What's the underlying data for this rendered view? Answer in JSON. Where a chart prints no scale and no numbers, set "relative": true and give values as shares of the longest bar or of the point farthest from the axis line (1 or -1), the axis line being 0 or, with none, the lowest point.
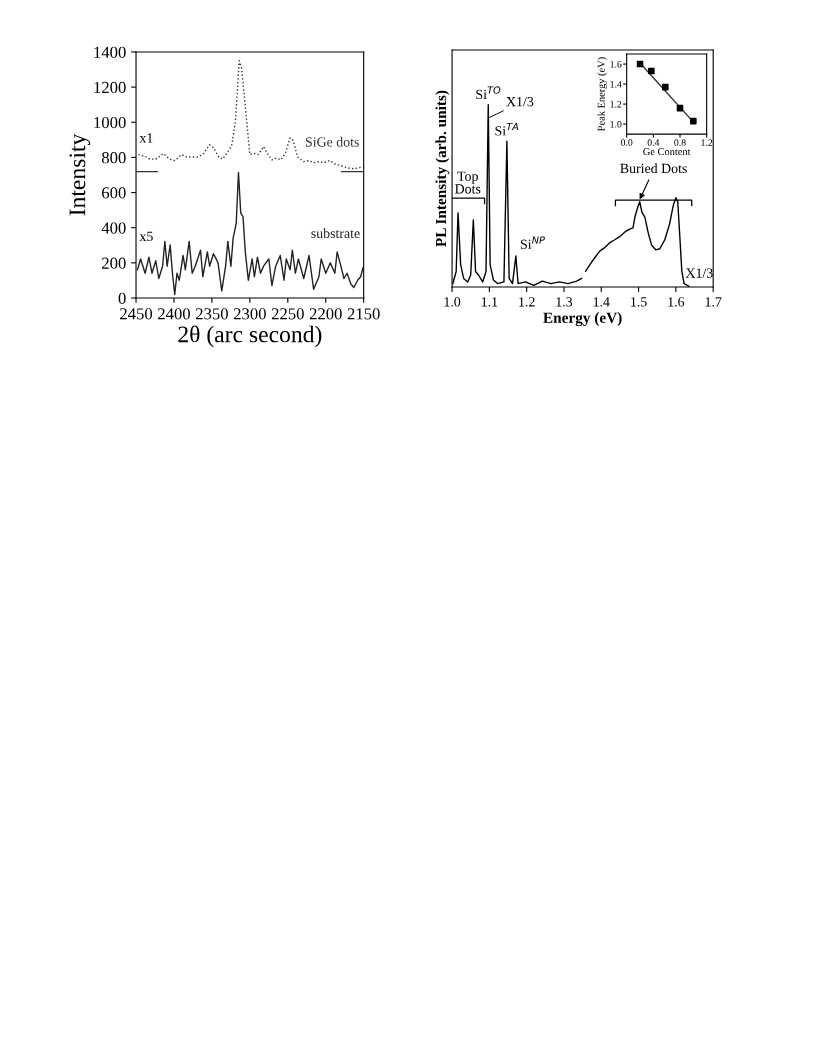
{
  "chart_data": [
    {
      "type": "line",
      "xlabel": "2θ (arc second)",
      "ylabel": "Intensity",
      "xlim": [
        2450,
        2150
      ],
      "xticks": [
        2450,
        2400,
        2350,
        2300,
        2250,
        2200,
        2150
      ],
      "ylim": [
        0,
        1400
      ],
      "yticks": [
        0,
        200,
        400,
        600,
        800,
        1000,
        1200,
        1400
      ],
      "series": [
        {
          "name": "SiGe dots",
          "color": "#333333",
          "line_style": "dotted",
          "x": [
            2447,
            2438,
            2432,
            2424,
            2414,
            2406,
            2399,
            2390,
            2383,
            2374,
            2368,
            2361,
            2353,
            2348,
            2341,
            2336,
            2330,
            2324,
            2319,
            2314,
            2311,
            2306,
            2300,
            2294,
            2289,
            2282,
            2278,
            2271,
            2265,
            2259,
            2253,
            2247,
            2243,
            2237,
            2229,
            2222,
            2216,
            2208,
            2202,
            2195,
            2187,
            2181,
            2172,
            2163,
            2152
          ],
          "values": [
            816,
            806,
            790,
            790,
            822,
            790,
            782,
            816,
            802,
            802,
            802,
            822,
            872,
            856,
            802,
            790,
            826,
            866,
            1007,
            1350,
            1310,
            1088,
            816,
            822,
            816,
            862,
            830,
            786,
            796,
            786,
            826,
            911,
            897,
            802,
            776,
            782,
            770,
            776,
            770,
            782,
            760,
            755,
            741,
            735,
            745
          ]
        },
        {
          "name": "substrate",
          "color": "#222222",
          "line_style": "solid",
          "x": [
            2448,
            2444,
            2438,
            2433,
            2429,
            2424,
            2420,
            2415,
            2412,
            2409,
            2405,
            2402,
            2399,
            2396,
            2393,
            2388,
            2385,
            2380,
            2376,
            2372,
            2365,
            2362,
            2356,
            2353,
            2348,
            2342,
            2337,
            2332,
            2329,
            2325,
            2322,
            2318,
            2315,
            2312,
            2309,
            2306,
            2302,
            2297,
            2294,
            2290,
            2286,
            2282,
            2275,
            2271,
            2266,
            2260,
            2255,
            2252,
            2247,
            2244,
            2240,
            2236,
            2229,
            2222,
            2216,
            2209,
            2206,
            2200,
            2194,
            2188,
            2185,
            2180,
            2176,
            2172,
            2167,
            2163,
            2158,
            2154,
            2151
          ],
          "values": [
            161,
            222,
            141,
            232,
            141,
            212,
            111,
            181,
            322,
            181,
            302,
            141,
            20,
            141,
            101,
            242,
            161,
            322,
            141,
            181,
            272,
            121,
            262,
            181,
            252,
            201,
            40,
            181,
            322,
            181,
            342,
            423,
            715,
            483,
            463,
            262,
            101,
            222,
            121,
            232,
            141,
            181,
            222,
            71,
            181,
            242,
            101,
            222,
            161,
            272,
            141,
            222,
            111,
            242,
            50,
            121,
            222,
            141,
            201,
            141,
            262,
            181,
            111,
            141,
            81,
            60,
            101,
            121,
            171
          ]
        },
        {
          "color": "#333333",
          "line_style": "solid",
          "x": [
            2450,
            2422
          ],
          "values": [
            719,
            719
          ]
        },
        {
          "color": "#333333",
          "line_style": "solid",
          "x": [
            2179,
            2150
          ],
          "values": [
            719,
            719
          ]
        }
      ],
      "annotations": [
        "x1",
        "x5"
      ]
    },
    {
      "type": "line",
      "relative": true,
      "xlabel": "Energy (eV)",
      "ylabel": "PL Intensity (arb. units)",
      "xlim": [
        1.0,
        1.7
      ],
      "xticks": [
        {
          "value": 1.0,
          "label": "1.0"
        },
        1.1,
        1.2,
        1.3,
        1.4,
        1.5,
        1.6,
        1.7
      ],
      "series": [
        {
          "color": "#000000",
          "x": [
            1.002,
            1.011,
            1.016,
            1.023,
            1.031,
            1.042,
            1.05,
            1.057,
            1.063,
            1.071,
            1.082,
            1.091,
            1.097,
            1.102,
            1.111,
            1.122,
            1.139,
            1.147,
            1.153,
            1.162,
            1.171,
            1.177,
            1.197,
            1.219,
            1.242,
            1.265,
            1.288,
            1.311,
            1.334,
            1.347
          ],
          "values": [
            0.019,
            0.085,
            0.406,
            0.123,
            0.047,
            0.028,
            0.066,
            0.368,
            0.085,
            0.066,
            0.028,
            0.085,
            1.0,
            0.123,
            0.038,
            0.019,
            0.028,
            0.8,
            0.047,
            0.019,
            0.17,
            0.019,
            0.028,
            0.009,
            0.032,
            0.019,
            0.028,
            0.019,
            0.032,
            0.047
          ]
        },
        {
          "color": "#000000",
          "x": [
            1.358,
            1.37,
            1.383,
            1.396,
            1.409,
            1.422,
            1.435,
            1.452,
            1.465,
            1.478,
            1.485,
            1.491,
            1.498,
            1.503,
            1.509,
            1.517,
            1.526,
            1.535,
            1.546,
            1.557,
            1.57,
            1.583,
            1.593,
            1.6,
            1.605,
            1.61,
            1.616,
            1.622,
            1.635
          ],
          "values": [
            0.086,
            0.124,
            0.162,
            0.197,
            0.216,
            0.242,
            0.258,
            0.281,
            0.305,
            0.319,
            0.324,
            0.391,
            0.439,
            0.468,
            0.41,
            0.382,
            0.296,
            0.229,
            0.204,
            0.21,
            0.258,
            0.344,
            0.448,
            0.49,
            0.468,
            0.296,
            0.086,
            0.019,
            0.004
          ]
        }
      ],
      "annotations": [
        {
          "text": "Si$^{TO}$",
          "x": 1.097,
          "y": 1.0
        },
        {
          "text": "X1/3",
          "x": 1.1,
          "y": 0.93
        },
        {
          "text": "Si$^{TA}$",
          "x": 1.147,
          "y": 0.8
        },
        {
          "text": "Top\nDots",
          "x": 1.016,
          "y": 0.406
        },
        {
          "text": "Si$^{NP}$",
          "x": 1.171,
          "y": 0.17
        },
        {
          "text": "Buried Dots",
          "x": 1.503,
          "y": 0.48
        },
        {
          "text": "X1/3",
          "x": 1.622,
          "y": 0.02
        }
      ]
    },
    {
      "type": "scatter",
      "xlabel": "Ge Content",
      "ylabel": "Peak Energy (eV)",
      "xlim": [
        0.0,
        1.2
      ],
      "xticks": [
        {
          "value": 0.0,
          "label": "0.0"
        },
        0.4,
        0.8,
        1.2
      ],
      "ylim": [
        0.9,
        1.7
      ],
      "yticks": [
        {
          "value": 1.0,
          "label": "1.0"
        },
        1.2,
        1.4,
        1.6
      ],
      "series": [
        {
          "type": "line",
          "color": "#333333",
          "x": [
            0.2,
            1.0
          ],
          "values": [
            1.61,
            1.02
          ]
        },
        {
          "color": "#000000",
          "marker": "square",
          "x": [
            0.2,
            0.37,
            0.58,
            0.8,
            1.0
          ],
          "values": [
            1.6,
            1.53,
            1.37,
            1.16,
            1.03
          ]
        }
      ]
    }
  ]
}
